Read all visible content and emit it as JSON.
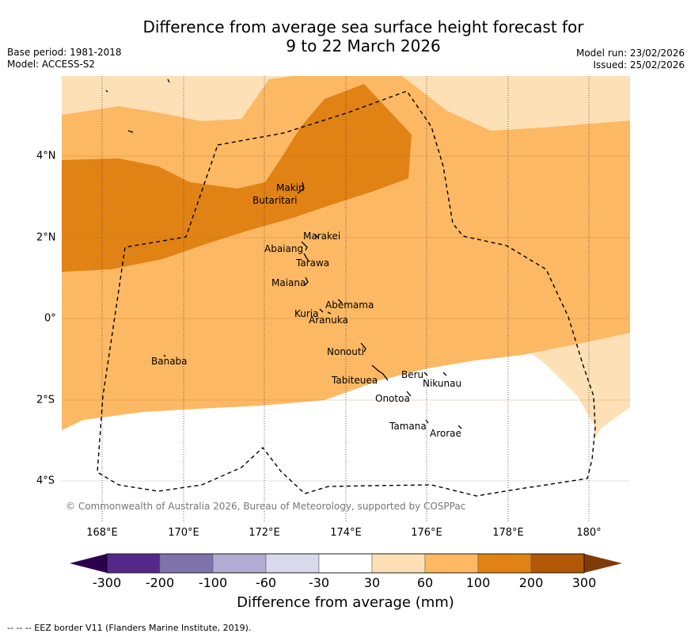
{
  "title_line1": "Difference from average sea surface height forecast for",
  "title_line2": "9 to 22 March 2026",
  "base_period": "Base period: 1981-2018",
  "model": "Model: ACCESS-S2",
  "model_run": "Model run: 23/02/2026",
  "issued": "Issued: 25/02/2026",
  "copyright": "© Commonwealth of Australia 2026, Bureau of Meteorology, supported by COSPPac",
  "lat_labels": [
    "4°N",
    "2°N",
    "0°",
    "2°S",
    "4°S"
  ],
  "lon_labels": [
    "168°E",
    "170°E",
    "172°E",
    "174°E",
    "176°E",
    "178°E",
    "180°"
  ],
  "places": [
    "Makin",
    "Butaritari",
    "Marakei",
    "Abaiang",
    "Tarawa",
    "Maiana",
    "Abemama",
    "Kuria",
    "Aranuka",
    "Nonouti",
    "Banaba",
    "Tabiteuea",
    "Beru",
    "Nikunau",
    "Onotoa",
    "Tamana",
    "Arorae"
  ],
  "colorbar": {
    "label": "Difference from average (mm)",
    "ticks": [
      "-300",
      "-200",
      "-100",
      "-60",
      "-30",
      "30",
      "60",
      "100",
      "200",
      "300"
    ],
    "colors": {
      "under": "#2d004b",
      "bins": [
        "#542788",
        "#8073ac",
        "#b2abd2",
        "#d8daeb",
        "#ffffff",
        "#fee0b6",
        "#fdb863",
        "#e08214",
        "#b35806"
      ],
      "over": "#7f3b08"
    }
  },
  "footnote": "--  --  -- EEZ border V11 (Flanders Marine Institute, 2019)."
}
